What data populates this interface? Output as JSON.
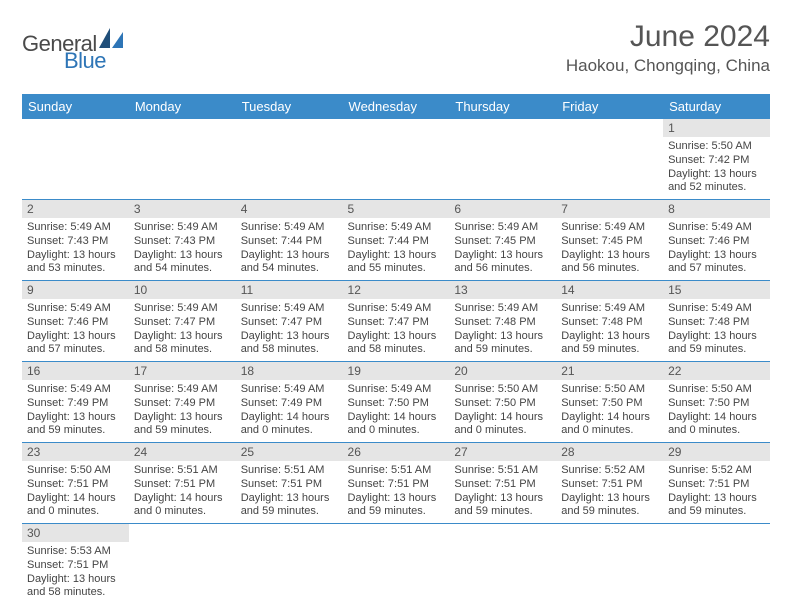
{
  "logo": {
    "general": "General",
    "blue": "Blue"
  },
  "title": "June 2024",
  "location": "Haokou, Chongqing, China",
  "colors": {
    "header_bg": "#3b8bc9",
    "header_fg": "#ffffff",
    "daynum_bg": "#e5e5e5",
    "rule": "#3b8bc9",
    "text": "#555555",
    "logo_blue": "#2e75b6"
  },
  "weekdays": [
    "Sunday",
    "Monday",
    "Tuesday",
    "Wednesday",
    "Thursday",
    "Friday",
    "Saturday"
  ],
  "weeks": [
    [
      {
        "n": "",
        "sr": "",
        "ss": "",
        "dl": ""
      },
      {
        "n": "",
        "sr": "",
        "ss": "",
        "dl": ""
      },
      {
        "n": "",
        "sr": "",
        "ss": "",
        "dl": ""
      },
      {
        "n": "",
        "sr": "",
        "ss": "",
        "dl": ""
      },
      {
        "n": "",
        "sr": "",
        "ss": "",
        "dl": ""
      },
      {
        "n": "",
        "sr": "",
        "ss": "",
        "dl": ""
      },
      {
        "n": "1",
        "sr": "Sunrise: 5:50 AM",
        "ss": "Sunset: 7:42 PM",
        "dl": "Daylight: 13 hours and 52 minutes."
      }
    ],
    [
      {
        "n": "2",
        "sr": "Sunrise: 5:49 AM",
        "ss": "Sunset: 7:43 PM",
        "dl": "Daylight: 13 hours and 53 minutes."
      },
      {
        "n": "3",
        "sr": "Sunrise: 5:49 AM",
        "ss": "Sunset: 7:43 PM",
        "dl": "Daylight: 13 hours and 54 minutes."
      },
      {
        "n": "4",
        "sr": "Sunrise: 5:49 AM",
        "ss": "Sunset: 7:44 PM",
        "dl": "Daylight: 13 hours and 54 minutes."
      },
      {
        "n": "5",
        "sr": "Sunrise: 5:49 AM",
        "ss": "Sunset: 7:44 PM",
        "dl": "Daylight: 13 hours and 55 minutes."
      },
      {
        "n": "6",
        "sr": "Sunrise: 5:49 AM",
        "ss": "Sunset: 7:45 PM",
        "dl": "Daylight: 13 hours and 56 minutes."
      },
      {
        "n": "7",
        "sr": "Sunrise: 5:49 AM",
        "ss": "Sunset: 7:45 PM",
        "dl": "Daylight: 13 hours and 56 minutes."
      },
      {
        "n": "8",
        "sr": "Sunrise: 5:49 AM",
        "ss": "Sunset: 7:46 PM",
        "dl": "Daylight: 13 hours and 57 minutes."
      }
    ],
    [
      {
        "n": "9",
        "sr": "Sunrise: 5:49 AM",
        "ss": "Sunset: 7:46 PM",
        "dl": "Daylight: 13 hours and 57 minutes."
      },
      {
        "n": "10",
        "sr": "Sunrise: 5:49 AM",
        "ss": "Sunset: 7:47 PM",
        "dl": "Daylight: 13 hours and 58 minutes."
      },
      {
        "n": "11",
        "sr": "Sunrise: 5:49 AM",
        "ss": "Sunset: 7:47 PM",
        "dl": "Daylight: 13 hours and 58 minutes."
      },
      {
        "n": "12",
        "sr": "Sunrise: 5:49 AM",
        "ss": "Sunset: 7:47 PM",
        "dl": "Daylight: 13 hours and 58 minutes."
      },
      {
        "n": "13",
        "sr": "Sunrise: 5:49 AM",
        "ss": "Sunset: 7:48 PM",
        "dl": "Daylight: 13 hours and 59 minutes."
      },
      {
        "n": "14",
        "sr": "Sunrise: 5:49 AM",
        "ss": "Sunset: 7:48 PM",
        "dl": "Daylight: 13 hours and 59 minutes."
      },
      {
        "n": "15",
        "sr": "Sunrise: 5:49 AM",
        "ss": "Sunset: 7:48 PM",
        "dl": "Daylight: 13 hours and 59 minutes."
      }
    ],
    [
      {
        "n": "16",
        "sr": "Sunrise: 5:49 AM",
        "ss": "Sunset: 7:49 PM",
        "dl": "Daylight: 13 hours and 59 minutes."
      },
      {
        "n": "17",
        "sr": "Sunrise: 5:49 AM",
        "ss": "Sunset: 7:49 PM",
        "dl": "Daylight: 13 hours and 59 minutes."
      },
      {
        "n": "18",
        "sr": "Sunrise: 5:49 AM",
        "ss": "Sunset: 7:49 PM",
        "dl": "Daylight: 14 hours and 0 minutes."
      },
      {
        "n": "19",
        "sr": "Sunrise: 5:49 AM",
        "ss": "Sunset: 7:50 PM",
        "dl": "Daylight: 14 hours and 0 minutes."
      },
      {
        "n": "20",
        "sr": "Sunrise: 5:50 AM",
        "ss": "Sunset: 7:50 PM",
        "dl": "Daylight: 14 hours and 0 minutes."
      },
      {
        "n": "21",
        "sr": "Sunrise: 5:50 AM",
        "ss": "Sunset: 7:50 PM",
        "dl": "Daylight: 14 hours and 0 minutes."
      },
      {
        "n": "22",
        "sr": "Sunrise: 5:50 AM",
        "ss": "Sunset: 7:50 PM",
        "dl": "Daylight: 14 hours and 0 minutes."
      }
    ],
    [
      {
        "n": "23",
        "sr": "Sunrise: 5:50 AM",
        "ss": "Sunset: 7:51 PM",
        "dl": "Daylight: 14 hours and 0 minutes."
      },
      {
        "n": "24",
        "sr": "Sunrise: 5:51 AM",
        "ss": "Sunset: 7:51 PM",
        "dl": "Daylight: 14 hours and 0 minutes."
      },
      {
        "n": "25",
        "sr": "Sunrise: 5:51 AM",
        "ss": "Sunset: 7:51 PM",
        "dl": "Daylight: 13 hours and 59 minutes."
      },
      {
        "n": "26",
        "sr": "Sunrise: 5:51 AM",
        "ss": "Sunset: 7:51 PM",
        "dl": "Daylight: 13 hours and 59 minutes."
      },
      {
        "n": "27",
        "sr": "Sunrise: 5:51 AM",
        "ss": "Sunset: 7:51 PM",
        "dl": "Daylight: 13 hours and 59 minutes."
      },
      {
        "n": "28",
        "sr": "Sunrise: 5:52 AM",
        "ss": "Sunset: 7:51 PM",
        "dl": "Daylight: 13 hours and 59 minutes."
      },
      {
        "n": "29",
        "sr": "Sunrise: 5:52 AM",
        "ss": "Sunset: 7:51 PM",
        "dl": "Daylight: 13 hours and 59 minutes."
      }
    ],
    [
      {
        "n": "30",
        "sr": "Sunrise: 5:53 AM",
        "ss": "Sunset: 7:51 PM",
        "dl": "Daylight: 13 hours and 58 minutes."
      },
      {
        "n": "",
        "sr": "",
        "ss": "",
        "dl": ""
      },
      {
        "n": "",
        "sr": "",
        "ss": "",
        "dl": ""
      },
      {
        "n": "",
        "sr": "",
        "ss": "",
        "dl": ""
      },
      {
        "n": "",
        "sr": "",
        "ss": "",
        "dl": ""
      },
      {
        "n": "",
        "sr": "",
        "ss": "",
        "dl": ""
      },
      {
        "n": "",
        "sr": "",
        "ss": "",
        "dl": ""
      }
    ]
  ]
}
